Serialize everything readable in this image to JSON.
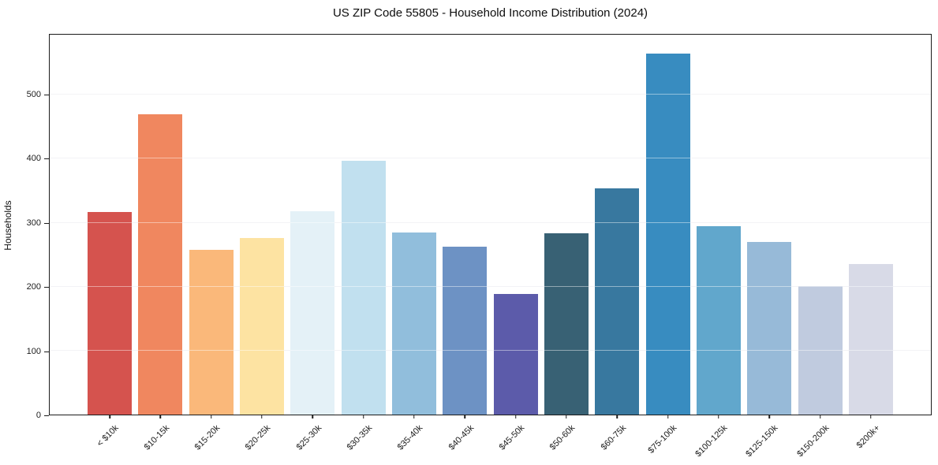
{
  "chart_data": {
    "type": "bar",
    "title": "US ZIP Code 55805 - Household Income Distribution (2024)",
    "xlabel": "",
    "ylabel": "Households",
    "categories": [
      "< $10k",
      "$10-15k",
      "$15-20k",
      "$20-25k",
      "$25-30k",
      "$30-35k",
      "$35-40k",
      "$40-45k",
      "$45-50k",
      "$50-60k",
      "$60-75k",
      "$75-100k",
      "$100-125k",
      "$125-150k",
      "$150-200k",
      "$200k+"
    ],
    "values": [
      317,
      470,
      257,
      276,
      318,
      397,
      285,
      262,
      189,
      284,
      354,
      565,
      295,
      270,
      201,
      236
    ],
    "bar_colors": [
      "#d5534e",
      "#f0875f",
      "#fab87a",
      "#fde3a2",
      "#e4f1f7",
      "#c1e0ef",
      "#91bedc",
      "#6d92c4",
      "#5c5baa",
      "#386174",
      "#38789f",
      "#388cc0",
      "#61a7cc",
      "#97bad8",
      "#c0cbdf",
      "#d8dae7"
    ],
    "ylim": [
      0,
      594
    ],
    "yticks": [
      0,
      100,
      200,
      300,
      400,
      500
    ],
    "grid": "horizontal",
    "legend": "none",
    "axis_color": "#1b1b1b",
    "grid_color": "#e9e9ee"
  }
}
